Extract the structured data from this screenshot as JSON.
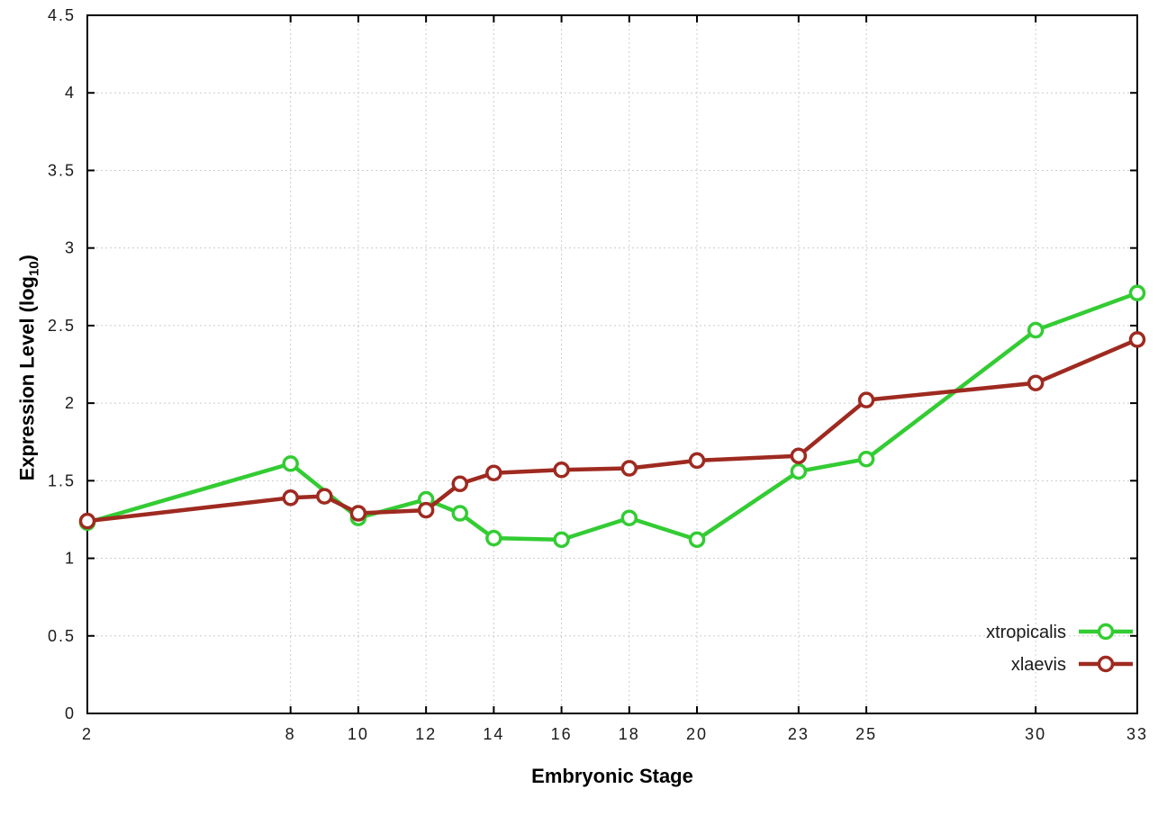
{
  "chart_data": {
    "type": "line",
    "title": "",
    "xlabel": "Embryonic Stage",
    "ylabel": "Expression Level (log10)",
    "ylabel_parts": {
      "main": "Expression Level (log",
      "sub": "10",
      "end": ")"
    },
    "xlim": [
      2,
      33
    ],
    "ylim": [
      0,
      4.5
    ],
    "x_ticks": [
      2,
      8,
      10,
      12,
      14,
      16,
      18,
      20,
      23,
      25,
      30,
      33
    ],
    "y_ticks": [
      0,
      0.5,
      1,
      1.5,
      2,
      2.5,
      3,
      3.5,
      4,
      4.5
    ],
    "grid": true,
    "grid_color": "#cccccc",
    "legend_position": "bottom-right",
    "series": [
      {
        "name": "xtropicalis",
        "color": "#33cc33",
        "x": [
          2,
          8,
          10,
          12,
          13,
          14,
          16,
          18,
          20,
          23,
          25,
          30,
          33
        ],
        "y": [
          1.23,
          1.61,
          1.26,
          1.38,
          1.29,
          1.13,
          1.12,
          1.26,
          1.12,
          1.56,
          1.64,
          2.47,
          2.71
        ]
      },
      {
        "name": "xlaevis",
        "color": "#9e2a20",
        "x": [
          2,
          8,
          9,
          10,
          12,
          13,
          14,
          16,
          18,
          20,
          23,
          25,
          30,
          33
        ],
        "y": [
          1.24,
          1.39,
          1.4,
          1.29,
          1.31,
          1.48,
          1.55,
          1.57,
          1.58,
          1.63,
          1.66,
          2.02,
          2.13,
          2.41
        ]
      }
    ]
  }
}
